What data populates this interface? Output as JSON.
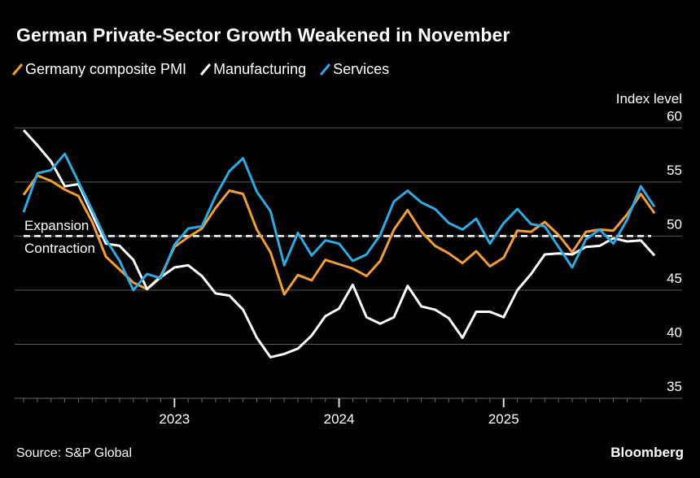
{
  "title": "German Private-Sector Growth Weakened in November",
  "source": "Source: S&P Global",
  "brand": "Bloomberg",
  "chart_data": {
    "type": "line",
    "title": "German Private-Sector Growth Weakened in November",
    "ylabel": "Index level",
    "ylim": [
      35,
      60
    ],
    "yticks": [
      "35",
      "40",
      "45",
      "50",
      "55",
      "60"
    ],
    "xticks": [
      "2023",
      "2024",
      "2025"
    ],
    "x_start": "2022-01",
    "x_end": "2025-11",
    "frequency": "monthly",
    "grid": true,
    "legend": "top-left",
    "reference_line": {
      "value": 50,
      "label_above": "Expansion",
      "label_below": "Contraction"
    },
    "series": [
      {
        "name": "Germany composite PMI",
        "color": "#f29e38",
        "values": [
          53.8,
          55.6,
          55.1,
          54.3,
          53.7,
          51.3,
          48.1,
          46.9,
          45.7,
          45.1,
          46.3,
          49.0,
          49.9,
          50.7,
          52.6,
          54.2,
          53.9,
          50.6,
          48.5,
          44.6,
          46.4,
          45.9,
          47.8,
          47.4,
          47.0,
          46.3,
          47.7,
          50.6,
          52.4,
          50.4,
          49.1,
          48.4,
          47.5,
          48.6,
          47.2,
          48.0,
          50.5,
          50.4,
          51.3,
          50.1,
          48.5,
          50.4,
          50.6,
          50.5,
          52.0,
          53.9,
          52.1
        ]
      },
      {
        "name": "Manufacturing",
        "color": "#ffffff",
        "values": [
          59.8,
          58.4,
          56.9,
          54.6,
          54.8,
          52.0,
          49.3,
          49.1,
          47.8,
          45.1,
          46.2,
          47.1,
          47.3,
          46.3,
          44.7,
          44.5,
          43.2,
          40.6,
          38.8,
          39.1,
          39.6,
          40.8,
          42.6,
          43.3,
          45.5,
          42.5,
          41.9,
          42.5,
          45.4,
          43.5,
          43.2,
          42.4,
          40.6,
          43.0,
          43.0,
          42.5,
          45.0,
          46.5,
          48.3,
          48.4,
          48.3,
          49.0,
          49.1,
          49.8,
          49.5,
          49.6,
          48.2
        ]
      },
      {
        "name": "Services",
        "color": "#2fa9e1",
        "values": [
          52.2,
          55.8,
          56.1,
          57.6,
          55.0,
          52.4,
          49.7,
          47.7,
          45.0,
          46.5,
          46.1,
          49.2,
          50.7,
          50.9,
          53.7,
          56.0,
          57.2,
          54.1,
          52.3,
          47.3,
          50.3,
          48.2,
          49.6,
          49.3,
          47.7,
          48.3,
          50.1,
          53.2,
          54.2,
          53.1,
          52.5,
          51.2,
          50.6,
          51.6,
          49.3,
          51.2,
          52.5,
          51.1,
          50.9,
          49.0,
          47.1,
          49.7,
          50.6,
          49.3,
          51.5,
          54.6,
          52.7
        ]
      }
    ]
  }
}
